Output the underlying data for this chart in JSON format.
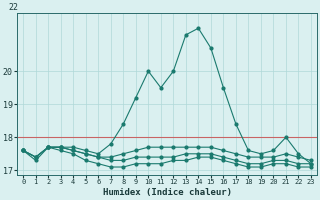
{
  "xlabel": "Humidex (Indice chaleur)",
  "x": [
    0,
    1,
    2,
    3,
    4,
    5,
    6,
    7,
    8,
    9,
    10,
    11,
    12,
    13,
    14,
    15,
    16,
    17,
    18,
    19,
    20,
    21,
    22,
    23
  ],
  "line_main": [
    17.6,
    17.4,
    17.7,
    17.7,
    17.7,
    17.6,
    17.5,
    17.8,
    18.4,
    19.2,
    20.0,
    19.5,
    20.0,
    21.1,
    21.3,
    20.7,
    19.5,
    18.4,
    17.6,
    17.5,
    17.6,
    18.0,
    17.5,
    17.2
  ],
  "line_low1": [
    17.6,
    17.3,
    17.7,
    17.6,
    17.5,
    17.3,
    17.2,
    17.1,
    17.1,
    17.2,
    17.2,
    17.2,
    17.3,
    17.3,
    17.4,
    17.4,
    17.3,
    17.2,
    17.1,
    17.1,
    17.2,
    17.2,
    17.1,
    17.1
  ],
  "line_low2": [
    17.6,
    17.4,
    17.7,
    17.7,
    17.6,
    17.5,
    17.4,
    17.4,
    17.5,
    17.6,
    17.7,
    17.7,
    17.7,
    17.7,
    17.7,
    17.7,
    17.6,
    17.5,
    17.4,
    17.4,
    17.4,
    17.5,
    17.4,
    17.3
  ],
  "line_low3": [
    17.6,
    17.4,
    17.7,
    17.7,
    17.6,
    17.5,
    17.4,
    17.3,
    17.3,
    17.4,
    17.4,
    17.4,
    17.4,
    17.5,
    17.5,
    17.5,
    17.4,
    17.3,
    17.2,
    17.2,
    17.3,
    17.3,
    17.2,
    17.2
  ],
  "line_color": "#1a7a6e",
  "bg_color": "#daf0f0",
  "grid_color": "#b0d8d8",
  "hline_color": "#c86464",
  "hline_y": 18.0,
  "ylim": [
    16.85,
    21.75
  ],
  "yticks": [
    17,
    18,
    19,
    20
  ],
  "ytop_label": "22",
  "xticks": [
    0,
    1,
    2,
    3,
    4,
    5,
    6,
    7,
    8,
    9,
    10,
    11,
    12,
    13,
    14,
    15,
    16,
    17,
    18,
    19,
    20,
    21,
    22,
    23
  ]
}
